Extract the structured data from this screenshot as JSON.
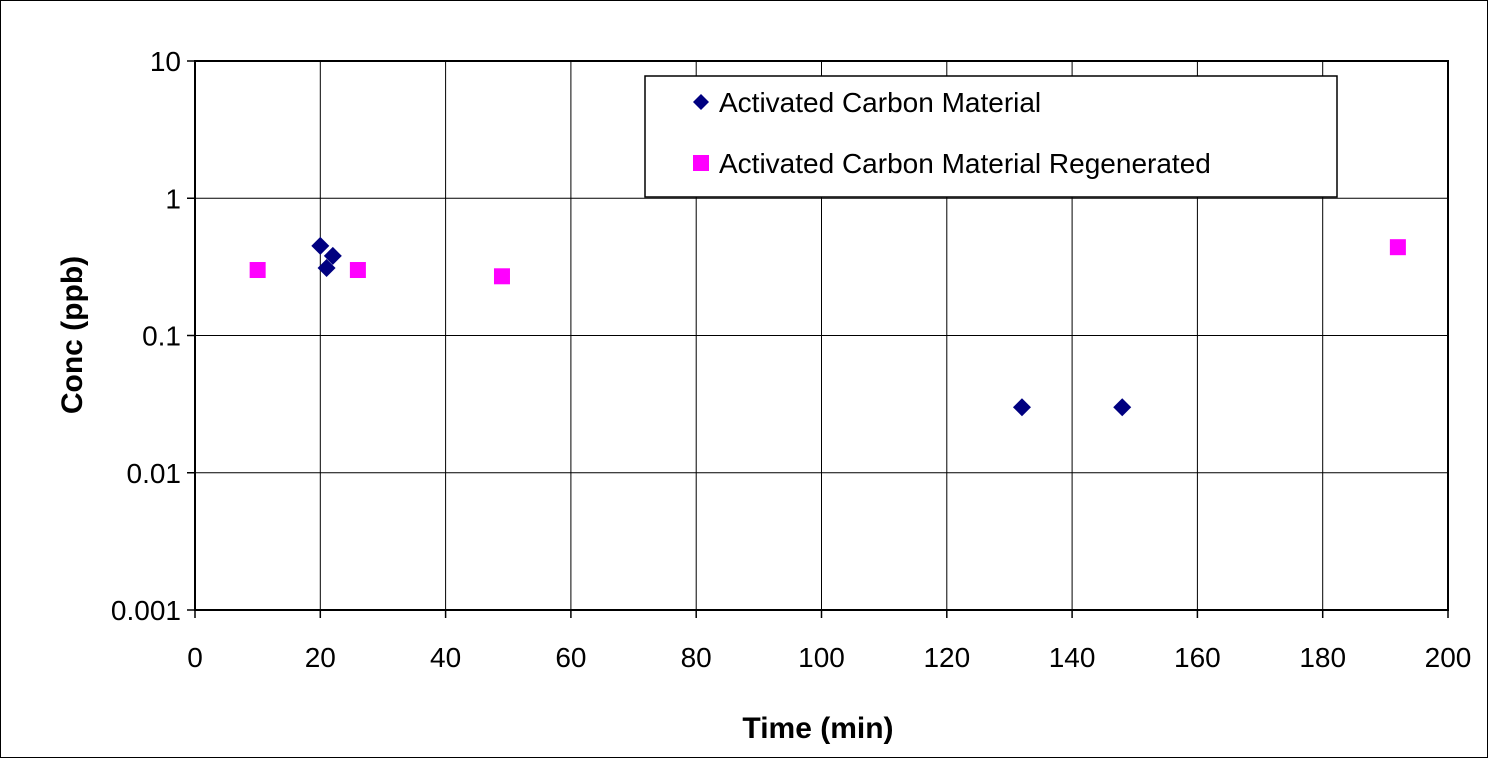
{
  "chart_data": {
    "type": "scatter",
    "title": "",
    "xlabel": "Time (min)",
    "ylabel": "Conc (ppb)",
    "xlim": [
      0,
      200
    ],
    "ylim": [
      0.001,
      10
    ],
    "yscale": "log",
    "grid": true,
    "legend_position": "top-right",
    "x_ticks": [
      "0",
      "20",
      "40",
      "60",
      "80",
      "100",
      "120",
      "140",
      "160",
      "180",
      "200"
    ],
    "y_ticks": [
      "10",
      "1",
      "0.1",
      "0.01",
      "0.001"
    ],
    "series": [
      {
        "name": "Activated Carbon Material",
        "marker": "diamond",
        "color": "#000080",
        "x": [
          20,
          21,
          22,
          132,
          148
        ],
        "y": [
          0.45,
          0.31,
          0.38,
          0.03,
          0.03
        ]
      },
      {
        "name": "Activated Carbon Material Regenerated",
        "marker": "square",
        "color": "#FF00FF",
        "x": [
          10,
          26,
          49,
          192
        ],
        "y": [
          0.3,
          0.3,
          0.27,
          0.44
        ]
      }
    ]
  }
}
